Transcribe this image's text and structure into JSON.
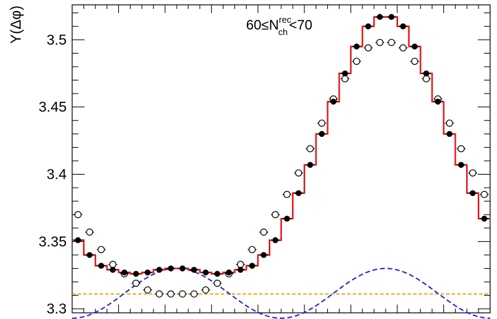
{
  "chart_data": {
    "type": "scatter",
    "title": "",
    "ylabel": "Y(Δφ)",
    "xlabel": "",
    "ylim": [
      3.297,
      3.526
    ],
    "xlim": [
      0,
      36
    ],
    "y_ticks": [
      "3.3",
      "3.35",
      "3.4",
      "3.45",
      "3.5"
    ],
    "grid": false,
    "annotation": {
      "main": "60≤N",
      "sup": "rec",
      "sub": "ch",
      "tail": "<70"
    },
    "series": [
      {
        "style": "filled-markers",
        "color": "#000000",
        "x": [
          0.5,
          1.5,
          2.5,
          3.5,
          4.5,
          5.5,
          6.5,
          7.5,
          8.5,
          9.5,
          10.5,
          11.5,
          12.5,
          13.5,
          14.5,
          15.5,
          16.5,
          17.5,
          18.5,
          19.5,
          20.5,
          21.5,
          22.5,
          23.5,
          24.5,
          25.5,
          26.5,
          27.5,
          28.5,
          29.5,
          30.5,
          31.5,
          32.5,
          33.5,
          34.5,
          35.5
        ],
        "y": [
          3.351,
          3.34,
          3.332,
          3.329,
          3.327,
          3.326,
          3.327,
          3.329,
          3.33,
          3.33,
          3.329,
          3.327,
          3.326,
          3.327,
          3.329,
          3.332,
          3.34,
          3.351,
          3.367,
          3.386,
          3.407,
          3.43,
          3.454,
          3.475,
          3.495,
          3.51,
          3.517,
          3.517,
          3.51,
          3.495,
          3.475,
          3.454,
          3.43,
          3.407,
          3.386,
          3.367
        ]
      },
      {
        "style": "open-markers",
        "color": "#000000",
        "x": [
          0.5,
          1.5,
          2.5,
          3.5,
          4.5,
          5.5,
          6.5,
          7.5,
          8.5,
          9.5,
          10.5,
          11.5,
          12.5,
          13.5,
          14.5,
          15.5,
          16.5,
          17.5,
          18.5,
          19.5,
          20.5,
          21.5,
          22.5,
          23.5,
          24.5,
          25.5,
          26.5,
          27.5,
          28.5,
          29.5,
          30.5,
          31.5,
          32.5,
          33.5,
          34.5,
          35.5
        ],
        "y": [
          3.37,
          3.357,
          3.344,
          3.333,
          3.326,
          3.319,
          3.314,
          3.311,
          3.311,
          3.311,
          3.311,
          3.314,
          3.319,
          3.326,
          3.333,
          3.344,
          3.357,
          3.37,
          3.385,
          3.401,
          3.419,
          3.438,
          3.456,
          3.471,
          3.484,
          3.494,
          3.498,
          3.498,
          3.494,
          3.484,
          3.471,
          3.456,
          3.438,
          3.419,
          3.401,
          3.385
        ]
      },
      {
        "style": "red-step-histogram",
        "color": "#e0120f",
        "bin_edges": [
          0,
          1,
          2,
          3,
          4,
          5,
          6,
          7,
          8,
          9,
          10,
          11,
          12,
          13,
          14,
          15,
          16,
          17,
          18,
          19,
          20,
          21,
          22,
          23,
          24,
          25,
          26,
          27,
          28,
          29,
          30,
          31,
          32,
          33,
          34,
          35,
          36
        ],
        "values": [
          3.351,
          3.34,
          3.332,
          3.329,
          3.327,
          3.326,
          3.327,
          3.329,
          3.33,
          3.33,
          3.329,
          3.327,
          3.326,
          3.327,
          3.329,
          3.332,
          3.34,
          3.351,
          3.367,
          3.386,
          3.407,
          3.43,
          3.454,
          3.475,
          3.495,
          3.51,
          3.517,
          3.517,
          3.51,
          3.495,
          3.475,
          3.454,
          3.43,
          3.407,
          3.386,
          3.367
        ]
      },
      {
        "style": "blue-dashed-cosine",
        "color": "#1a1adf",
        "baseline": 3.3115,
        "amplitude": 0.0185,
        "period_bins": 18,
        "peak_at_x": 9,
        "x_range": [
          0,
          36
        ]
      },
      {
        "style": "orange-dashed-constant",
        "color": "#f0a000",
        "y": 3.311,
        "x_range": [
          0,
          36
        ]
      }
    ]
  }
}
